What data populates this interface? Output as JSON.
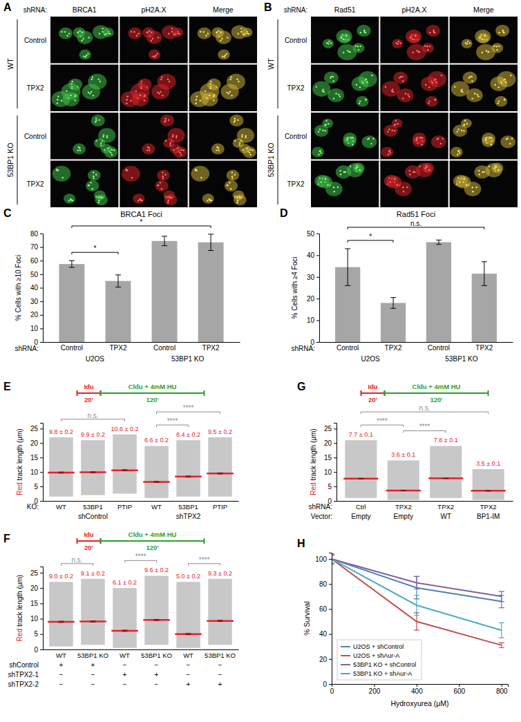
{
  "images": [
    {
      "panel": "A",
      "shrna_label": "shRNA:",
      "columns": [
        "BRCA1",
        "pH2A.X",
        "Merge"
      ],
      "groups": [
        {
          "name": "WT",
          "rows": [
            "Control",
            "TPX2"
          ]
        },
        {
          "name": "53BP1 KO",
          "rows": [
            "Control",
            "TPX2"
          ]
        }
      ]
    },
    {
      "panel": "B",
      "shrna_label": "shRNA:",
      "columns": [
        "Rad51",
        "pH2A.X",
        "Merge"
      ],
      "groups": [
        {
          "name": "WT",
          "rows": [
            "Control",
            "TPX2"
          ]
        },
        {
          "name": "53BP1 KO",
          "rows": [
            "Control",
            "TPX2"
          ]
        }
      ]
    }
  ],
  "chart_data": [
    {
      "panel": "C",
      "type": "bar",
      "title": "BRCA1 Foci",
      "y_label": "% Cells with ≥10 Foci",
      "x_prefix": "shRNA:",
      "categories": [
        "Control",
        "TPX2",
        "Control",
        "TPX2"
      ],
      "groups": [
        {
          "name": "U2OS",
          "size": 2
        },
        {
          "name": "53BP1 KO",
          "size": 2
        }
      ],
      "values": [
        57.5,
        45,
        74.5,
        73.5
      ],
      "errors": [
        2.5,
        4.5,
        3.5,
        6
      ],
      "color": "#a6a6a6",
      "ylim": [
        0,
        80
      ],
      "yticks": [
        0,
        10,
        20,
        30,
        40,
        50,
        60,
        70,
        80
      ],
      "annotations": [
        {
          "from": 0,
          "to": 1,
          "text": "*",
          "color": "#000000"
        },
        {
          "from": 0,
          "to": 3,
          "text": "*",
          "color": "#000000"
        }
      ]
    },
    {
      "panel": "D",
      "type": "bar",
      "title": "Rad51 Foci",
      "y_label": "% Cells with ≥4 Foci",
      "x_prefix": "shRNA:",
      "categories": [
        "Control",
        "TPX2",
        "Control",
        "TPX2"
      ],
      "groups": [
        {
          "name": "U2OS",
          "size": 2
        },
        {
          "name": "53BP1 KO",
          "size": 2
        }
      ],
      "values": [
        34.5,
        18,
        46,
        31.5
      ],
      "errors": [
        8.5,
        2.5,
        1,
        5.5
      ],
      "color": "#a6a6a6",
      "ylim": [
        0,
        50
      ],
      "yticks": [
        0,
        10,
        20,
        30,
        40,
        50
      ],
      "annotations": [
        {
          "from": 0,
          "to": 1,
          "text": "*",
          "color": "#000000"
        },
        {
          "from": 0,
          "to": 3,
          "text": "n.s.",
          "color": "#000000"
        }
      ]
    },
    {
      "panel": "E",
      "type": "strip",
      "timeline": {
        "labels": [
          "Idu",
          "Cldu + 4mM HU"
        ],
        "times": [
          "20'",
          "120'"
        ]
      },
      "y_label": [
        {
          "text": "Red",
          "color": "#e8202a"
        },
        {
          "text": " track length (μm)",
          "color": "#000000"
        }
      ],
      "x_prefix": "KO:",
      "categories": [
        "WT",
        "53BP1",
        "PTIP",
        "WT",
        "53BP1",
        "PTIP"
      ],
      "groups": [
        {
          "name": "shControl",
          "size": 3
        },
        {
          "name": "shTPX2",
          "size": 3
        }
      ],
      "values": [
        9.8,
        9.9,
        10.6,
        6.6,
        8.4,
        9.5
      ],
      "value_labels": [
        "9.8 ± 0.2",
        "9.9 ± 0.2",
        "10.6 ± 0.2",
        "6.6 ± 0.2",
        "8.4 ± 0.2",
        "9.5 ± 0.2"
      ],
      "errors": [
        0.2,
        0.2,
        0.2,
        0.2,
        0.2,
        0.2
      ],
      "min": [
        1.5,
        2,
        2.5,
        1,
        1.5,
        1.5
      ],
      "max": [
        22,
        21,
        23,
        19,
        21,
        22
      ],
      "color": "#9a9a9a",
      "ylim": [
        0,
        27
      ],
      "yticks": [
        0,
        5,
        10,
        15,
        20,
        25
      ],
      "annotations": [
        {
          "from": 0,
          "to": 2,
          "text": "n.s.",
          "color": "#8c8c8c"
        },
        {
          "from": 3,
          "to": 4,
          "text": "****",
          "color": "#8c8c8c"
        },
        {
          "from": 3,
          "to": 5,
          "text": "****",
          "color": "#8c8c8c"
        }
      ]
    },
    {
      "panel": "F",
      "type": "strip",
      "timeline": {
        "labels": [
          "Idu",
          "Cldu + 4mM HU"
        ],
        "times": [
          "20'",
          "120'"
        ]
      },
      "y_label": [
        {
          "text": "Red",
          "color": "#e8202a"
        },
        {
          "text": " track length (μm)",
          "color": "#000000"
        }
      ],
      "categories": [
        "WT",
        "53BP1 KO",
        "WT",
        "53BP1 KO",
        "WT",
        "53BP1 KO"
      ],
      "rows": [
        {
          "name": "shControl",
          "labels": [
            "+",
            "+",
            "−",
            "−",
            "−",
            "−"
          ]
        },
        {
          "name": "shTPX2-1",
          "labels": [
            "−",
            "−",
            "+",
            "+",
            "−",
            "−"
          ]
        },
        {
          "name": "shTPX2-2",
          "labels": [
            "−",
            "−",
            "−",
            "−",
            "+",
            "+"
          ]
        }
      ],
      "values": [
        9.0,
        9.1,
        6.1,
        9.6,
        5.0,
        9.3
      ],
      "value_labels": [
        "9.0 ± 0.2",
        "9.1 ± 0.2",
        "6.1 ± 0.2",
        "9.6 ± 0.2",
        "5.0 ± 0.2",
        "9.3 ± 0.2"
      ],
      "errors": [
        0.2,
        0.2,
        0.2,
        0.2,
        0.2,
        0.2
      ],
      "min": [
        1,
        1.5,
        0.5,
        1.5,
        0.5,
        1.5
      ],
      "max": [
        22,
        23,
        20,
        24,
        22,
        23
      ],
      "color": "#9a9a9a",
      "ylim": [
        0,
        27
      ],
      "yticks": [
        0,
        5,
        10,
        15,
        20,
        25
      ],
      "annotations": [
        {
          "from": 0,
          "to": 1,
          "text": "n.s.",
          "color": "#8c8c8c"
        },
        {
          "from": 2,
          "to": 3,
          "text": "****",
          "color": "#8c8c8c"
        },
        {
          "from": 4,
          "to": 5,
          "text": "****",
          "color": "#8c8c8c"
        }
      ]
    },
    {
      "panel": "G",
      "type": "strip",
      "timeline": {
        "labels": [
          "Idu",
          "Cldu + 4mM HU"
        ],
        "times": [
          "20'",
          "120'"
        ]
      },
      "y_label": [
        {
          "text": "Red",
          "color": "#e8202a"
        },
        {
          "text": " track length (μm)",
          "color": "#000000"
        }
      ],
      "x_prefix": "shRNA:",
      "categories": [
        "Ctrl",
        "TPX2",
        "TPX2",
        "TPX2"
      ],
      "rows": [
        {
          "name": "Vector:",
          "labels": [
            "Empty",
            "Empty",
            "WT",
            "BP1-IM"
          ]
        }
      ],
      "values": [
        7.7,
        3.6,
        7.8,
        3.5
      ],
      "value_labels": [
        "7.7 ± 0.1",
        "3.6 ± 0.1",
        "7.8 ± 0.1",
        "3.5 ± 0.1"
      ],
      "errors": [
        0.1,
        0.1,
        0.1,
        0.1
      ],
      "min": [
        1,
        0.3,
        1,
        0.3
      ],
      "max": [
        21,
        14,
        19,
        11
      ],
      "color": "#9a9a9a",
      "ylim": [
        0,
        27
      ],
      "yticks": [
        0,
        5,
        10,
        15,
        20,
        25
      ],
      "annotations": [
        {
          "from": 0,
          "to": 1,
          "text": "****",
          "color": "#8c8c8c"
        },
        {
          "from": 1,
          "to": 2,
          "text": "****",
          "color": "#8c8c8c"
        },
        {
          "from": 0,
          "to": 3,
          "text": "n.s.",
          "color": "#8c8c8c"
        }
      ]
    },
    {
      "panel": "H",
      "type": "line",
      "x": [
        0,
        400,
        800
      ],
      "xlim": [
        0,
        830
      ],
      "xticks": [
        0,
        200,
        400,
        600,
        800
      ],
      "ylim": [
        0,
        105
      ],
      "yticks": [
        0,
        20,
        40,
        60,
        80,
        100
      ],
      "x_label": "Hydroxyurea (μM)",
      "y_label": "% Survival",
      "legend": "lower left",
      "series": [
        {
          "name": "U2OS + shControl",
          "color": "#4f81bd",
          "values": [
            100,
            77,
            66
          ],
          "errors": [
            4,
            9,
            5
          ]
        },
        {
          "name": "U2OS + shAur-A",
          "color": "#c0504d",
          "values": [
            100,
            50,
            31
          ],
          "errors": [
            4,
            7,
            2
          ]
        },
        {
          "name": "53BP1 KO + shControl",
          "color": "#8064a2",
          "values": [
            100,
            81,
            70
          ],
          "errors": [
            3,
            5,
            4
          ]
        },
        {
          "name": "53BP1 KO + shAur-A",
          "color": "#4bacc6",
          "values": [
            100,
            63,
            43
          ],
          "errors": [
            3,
            8,
            6
          ]
        }
      ]
    }
  ]
}
